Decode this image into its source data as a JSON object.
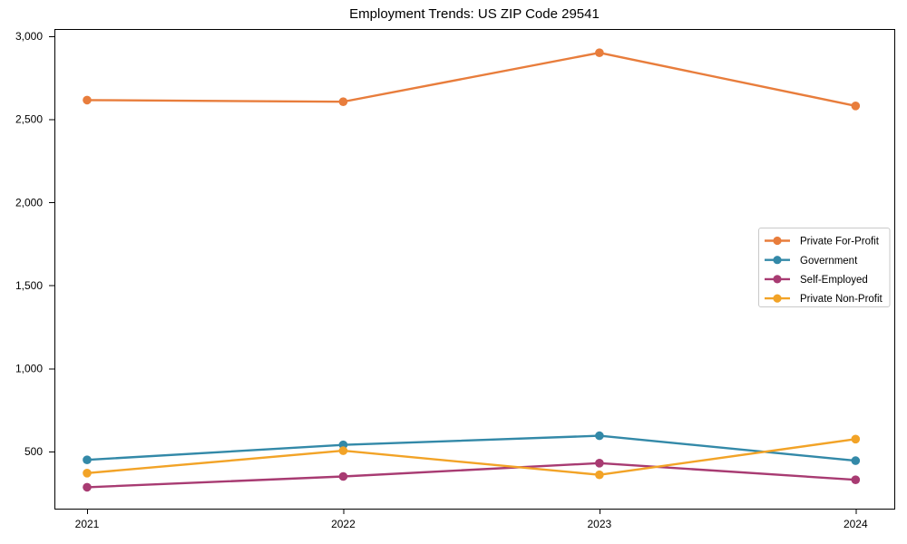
{
  "title": "Employment Trends: US ZIP Code 29541",
  "chart_data": {
    "type": "line",
    "title": "Employment Trends: US ZIP Code 29541",
    "xlabel": "",
    "ylabel": "",
    "x": [
      2021,
      2022,
      2023,
      2024
    ],
    "xtick_labels": [
      "2021",
      "2022",
      "2023",
      "2024"
    ],
    "yticks": [
      500,
      1000,
      1500,
      2000,
      2500,
      3000
    ],
    "ytick_labels": [
      "500",
      "1,000",
      "1,500",
      "2,000",
      "2,500",
      "3,000"
    ],
    "ylim": [
      156,
      3044
    ],
    "grid": false,
    "marker": "circle",
    "legend_position": "center-right",
    "series": [
      {
        "name": "Private For-Profit",
        "color": "#E87D3C",
        "values": [
          2615,
          2605,
          2900,
          2580
        ]
      },
      {
        "name": "Government",
        "color": "#3389A8",
        "values": [
          450,
          540,
          595,
          445
        ]
      },
      {
        "name": "Self-Employed",
        "color": "#A83B72",
        "values": [
          285,
          350,
          430,
          330
        ]
      },
      {
        "name": "Private Non-Profit",
        "color": "#F2A327",
        "values": [
          370,
          505,
          360,
          575
        ]
      }
    ]
  }
}
